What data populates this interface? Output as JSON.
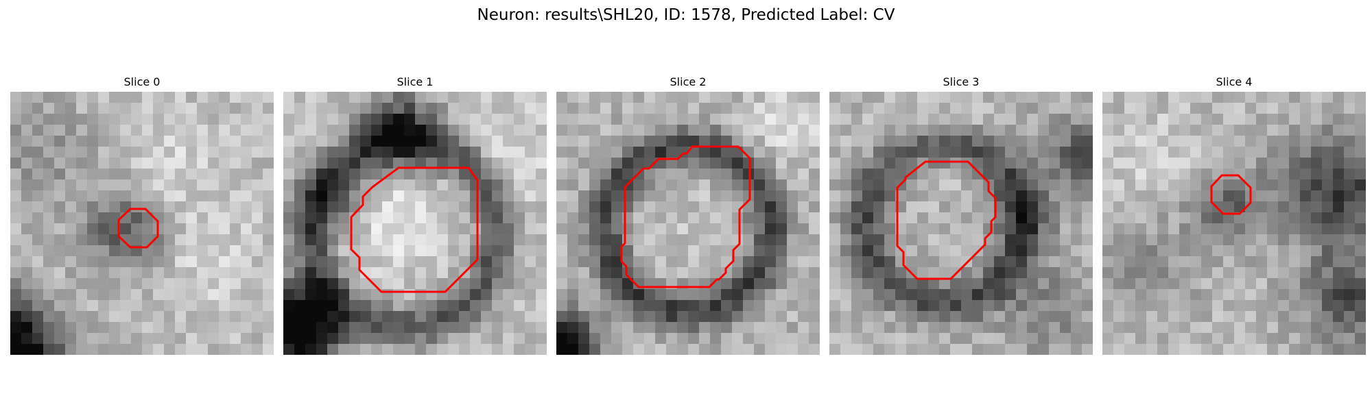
{
  "figure": {
    "title": "Neuron: results\\SHL20, ID: 1578, Predicted Label: CV"
  },
  "colors": {
    "contour": "#ff0000",
    "background": "#ffffff"
  },
  "panels": [
    {
      "title": "Slice 0",
      "image": "grayscale-microscopy-slice",
      "contour_color": "red"
    },
    {
      "title": "Slice 1",
      "image": "grayscale-microscopy-slice",
      "contour_color": "red"
    },
    {
      "title": "Slice 2",
      "image": "grayscale-microscopy-slice",
      "contour_color": "red"
    },
    {
      "title": "Slice 3",
      "image": "grayscale-microscopy-slice",
      "contour_color": "red"
    },
    {
      "title": "Slice 4",
      "image": "grayscale-microscopy-slice",
      "contour_color": "red"
    }
  ]
}
